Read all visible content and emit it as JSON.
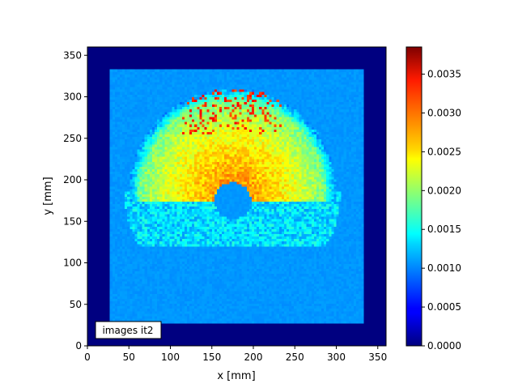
{
  "chart_data": {
    "type": "heatmap",
    "title": "",
    "xlabel": "x [mm]",
    "ylabel": "y [mm]",
    "xlim": [
      0,
      360
    ],
    "ylim": [
      0,
      360
    ],
    "x_ticks": [
      "0",
      "50",
      "100",
      "150",
      "200",
      "250",
      "300",
      "350"
    ],
    "x_tick_values": [
      0,
      50,
      100,
      150,
      200,
      250,
      300,
      350
    ],
    "y_ticks": [
      "0",
      "50",
      "100",
      "150",
      "200",
      "250",
      "300",
      "350"
    ],
    "y_tick_values": [
      0,
      50,
      100,
      150,
      200,
      250,
      300,
      350
    ],
    "colormap": "jet",
    "colorbar": {
      "min": 0.0,
      "max": 0.00385,
      "ticks": [
        "0.0000",
        "0.0005",
        "0.0010",
        "0.0015",
        "0.0020",
        "0.0025",
        "0.0030",
        "0.0035"
      ],
      "tick_values": [
        0.0,
        0.0005,
        0.001,
        0.0015,
        0.002,
        0.0025,
        0.003,
        0.0035
      ]
    },
    "field": {
      "background_value": 0.0,
      "region_x_range": [
        27,
        332
      ],
      "region_y_range": [
        27,
        332
      ],
      "base_value": 0.00105,
      "half_disc_center": [
        175,
        185
      ],
      "half_disc_radius": 125,
      "half_disc_value_range": [
        0.0015,
        0.0029
      ],
      "hole_center": [
        175,
        175
      ],
      "hole_radius": 22,
      "hot_spot_value": 0.0034,
      "lower_noise_band_y": [
        120,
        185
      ]
    },
    "annotation": "images it2",
    "grid": false
  }
}
